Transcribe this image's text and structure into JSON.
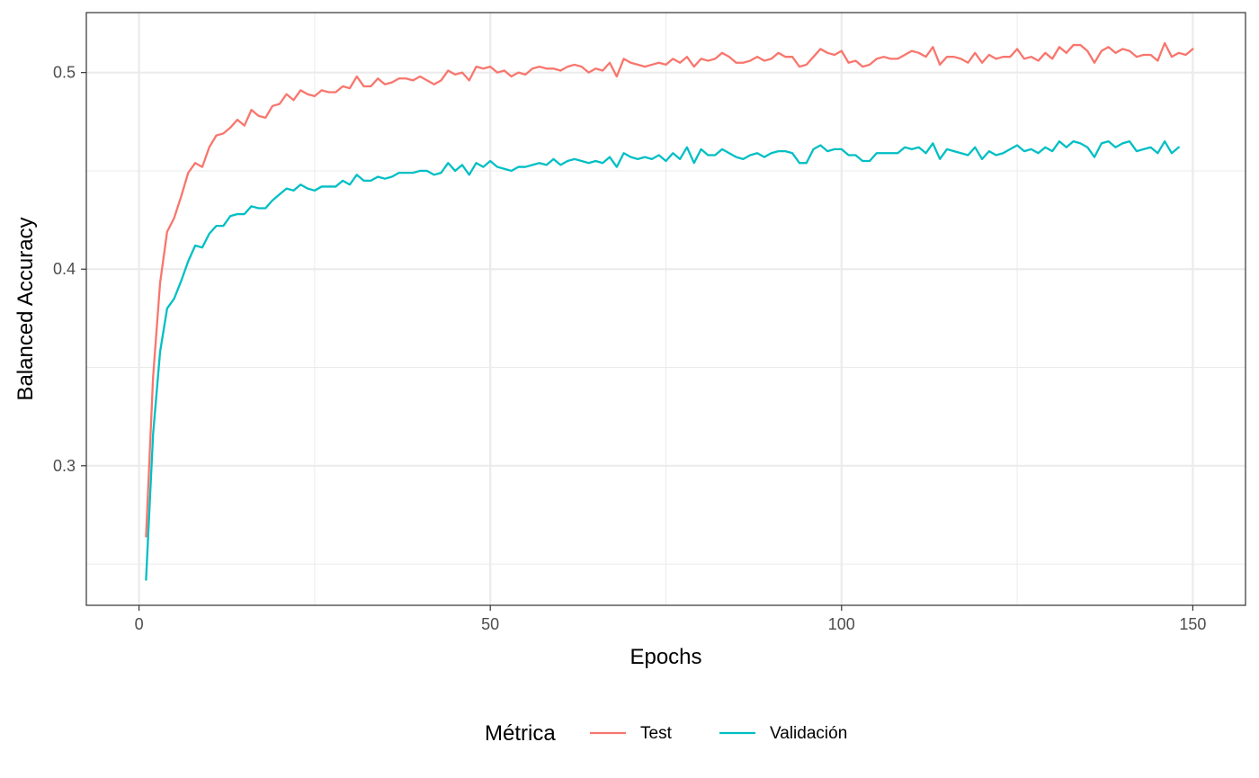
{
  "chart_data": {
    "type": "line",
    "xlabel": "Epochs",
    "ylabel": "Balanced Accuracy",
    "xlim": [
      -7.5,
      157.5
    ],
    "ylim": [
      0.229,
      0.5305
    ],
    "x_ticks": [
      0,
      50,
      100,
      150
    ],
    "x_tick_labels": [
      "0",
      "50",
      "100",
      "150"
    ],
    "y_ticks": [
      0.3,
      0.4,
      0.5
    ],
    "y_tick_labels": [
      "0.3",
      "0.4",
      "0.5"
    ],
    "grid": true,
    "legend": {
      "title": "Métrica",
      "position": "bottom"
    },
    "series": [
      {
        "name": "Test",
        "color": "#F8766D",
        "x_start": 1,
        "values": [
          0.264,
          0.345,
          0.393,
          0.419,
          0.426,
          0.437,
          0.449,
          0.454,
          0.452,
          0.462,
          0.468,
          0.469,
          0.472,
          0.476,
          0.473,
          0.481,
          0.478,
          0.477,
          0.483,
          0.484,
          0.489,
          0.486,
          0.491,
          0.489,
          0.488,
          0.491,
          0.49,
          0.49,
          0.493,
          0.492,
          0.498,
          0.493,
          0.493,
          0.497,
          0.494,
          0.495,
          0.497,
          0.497,
          0.496,
          0.498,
          0.496,
          0.494,
          0.496,
          0.501,
          0.499,
          0.5,
          0.496,
          0.503,
          0.502,
          0.503,
          0.5,
          0.501,
          0.498,
          0.5,
          0.499,
          0.502,
          0.503,
          0.502,
          0.502,
          0.501,
          0.503,
          0.504,
          0.503,
          0.5,
          0.502,
          0.501,
          0.505,
          0.498,
          0.507,
          0.505,
          0.504,
          0.503,
          0.504,
          0.505,
          0.504,
          0.507,
          0.505,
          0.508,
          0.503,
          0.507,
          0.506,
          0.507,
          0.51,
          0.508,
          0.505,
          0.505,
          0.506,
          0.508,
          0.506,
          0.507,
          0.51,
          0.508,
          0.508,
          0.503,
          0.504,
          0.508,
          0.512,
          0.51,
          0.509,
          0.511,
          0.505,
          0.506,
          0.503,
          0.504,
          0.507,
          0.508,
          0.507,
          0.507,
          0.509,
          0.511,
          0.51,
          0.508,
          0.513,
          0.504,
          0.508,
          0.508,
          0.507,
          0.505,
          0.51,
          0.505,
          0.509,
          0.507,
          0.508,
          0.508,
          0.512,
          0.507,
          0.508,
          0.506,
          0.51,
          0.507,
          0.513,
          0.51,
          0.514,
          0.514,
          0.511,
          0.505,
          0.511,
          0.513,
          0.51,
          0.512,
          0.511,
          0.508,
          0.509,
          0.509,
          0.506,
          0.515,
          0.508,
          0.51,
          0.509,
          0.512
        ]
      },
      {
        "name": "Validación",
        "color": "#00BFC4",
        "x_start": 1,
        "values": [
          0.242,
          0.316,
          0.358,
          0.38,
          0.385,
          0.394,
          0.404,
          0.412,
          0.411,
          0.418,
          0.422,
          0.422,
          0.427,
          0.428,
          0.428,
          0.432,
          0.431,
          0.431,
          0.435,
          0.438,
          0.441,
          0.44,
          0.443,
          0.441,
          0.44,
          0.442,
          0.442,
          0.442,
          0.445,
          0.443,
          0.448,
          0.445,
          0.445,
          0.447,
          0.446,
          0.447,
          0.449,
          0.449,
          0.449,
          0.45,
          0.45,
          0.448,
          0.449,
          0.454,
          0.45,
          0.453,
          0.448,
          0.454,
          0.452,
          0.455,
          0.452,
          0.451,
          0.45,
          0.452,
          0.452,
          0.453,
          0.454,
          0.453,
          0.456,
          0.453,
          0.455,
          0.456,
          0.455,
          0.454,
          0.455,
          0.454,
          0.457,
          0.452,
          0.459,
          0.457,
          0.456,
          0.457,
          0.456,
          0.458,
          0.455,
          0.459,
          0.456,
          0.462,
          0.454,
          0.461,
          0.458,
          0.458,
          0.461,
          0.459,
          0.457,
          0.456,
          0.458,
          0.459,
          0.457,
          0.459,
          0.46,
          0.46,
          0.459,
          0.454,
          0.454,
          0.461,
          0.463,
          0.46,
          0.461,
          0.461,
          0.458,
          0.458,
          0.455,
          0.455,
          0.459,
          0.459,
          0.459,
          0.459,
          0.462,
          0.461,
          0.462,
          0.459,
          0.464,
          0.456,
          0.461,
          0.46,
          0.459,
          0.458,
          0.462,
          0.456,
          0.46,
          0.458,
          0.459,
          0.461,
          0.463,
          0.46,
          0.461,
          0.459,
          0.462,
          0.46,
          0.465,
          0.462,
          0.465,
          0.464,
          0.462,
          0.457,
          0.464,
          0.465,
          0.462,
          0.464,
          0.465,
          0.46,
          0.461,
          0.462,
          0.459,
          0.465,
          0.459,
          0.462
        ]
      }
    ]
  }
}
